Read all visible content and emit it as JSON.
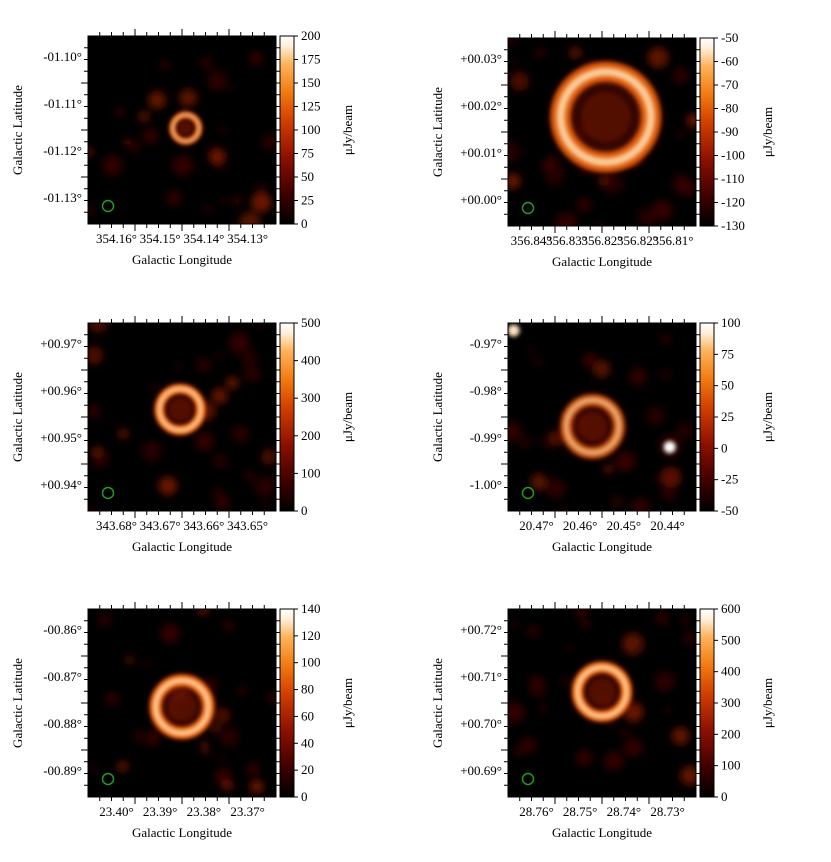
{
  "colorscale": {
    "name": "afmhot",
    "stops": [
      "#000000",
      "#3a0000",
      "#8b0f00",
      "#d23f00",
      "#f27a10",
      "#ffb25a",
      "#fff1dd",
      "#ffffff"
    ]
  },
  "beam_color": "#22a022",
  "panels": [
    {
      "id": "p1",
      "xlabel": "Galactic Longitude",
      "ylabel": "Galactic Latitude",
      "xticks": [
        "354.16°",
        "354.15°",
        "354.14°",
        "354.13°"
      ],
      "yticks": [
        "-01.10°",
        "-01.11°",
        "-01.12°",
        "-01.13°"
      ],
      "cbar_label": "μJy/beam",
      "cbar_ticks": [
        "200",
        "175",
        "150",
        "125",
        "100",
        "75",
        "50",
        "25",
        "0"
      ],
      "cbar_range": [
        0,
        200
      ],
      "source": {
        "shape": "ring",
        "cx": 0.52,
        "cy": 0.49,
        "r": 0.07,
        "intensity": 0.95
      }
    },
    {
      "id": "p2",
      "xlabel": "Galactic Longitude",
      "ylabel": "Galactic Latitude",
      "xticks": [
        "356.84°",
        "356.83°",
        "356.82°",
        "356.82°",
        "356.81°"
      ],
      "yticks": [
        "+00.03°",
        "+00.02°",
        "+00.01°",
        "+00.00°"
      ],
      "cbar_label": "μJy/beam",
      "cbar_ticks": [
        "-50",
        "-60",
        "-70",
        "-80",
        "-90",
        "-100",
        "-110",
        "-120",
        "-130"
      ],
      "cbar_range": [
        -130,
        -50
      ],
      "source": {
        "shape": "ring",
        "cx": 0.52,
        "cy": 0.42,
        "r": 0.24,
        "intensity": 0.9
      }
    },
    {
      "id": "p3",
      "xlabel": "Galactic Longitude",
      "ylabel": "Galactic Latitude",
      "xticks": [
        "343.68°",
        "343.67°",
        "343.66°",
        "343.65°"
      ],
      "yticks": [
        "+00.97°",
        "+00.96°",
        "+00.95°",
        "+00.94°"
      ],
      "cbar_label": "μJy/beam",
      "cbar_ticks": [
        "500",
        "400",
        "300",
        "200",
        "100",
        "0"
      ],
      "cbar_range": [
        0,
        500
      ],
      "source": {
        "shape": "ring",
        "cx": 0.49,
        "cy": 0.46,
        "r": 0.11,
        "intensity": 1.0
      }
    },
    {
      "id": "p4",
      "xlabel": "Galactic Longitude",
      "ylabel": "Galactic Latitude",
      "xticks": [
        "20.47°",
        "20.46°",
        "20.45°",
        "20.44°"
      ],
      "yticks": [
        "-0.97°",
        "-0.98°",
        "-0.99°",
        "-1.00°"
      ],
      "cbar_label": "μJy/beam",
      "cbar_ticks": [
        "100",
        "75",
        "50",
        "25",
        "0",
        "-25",
        "-50"
      ],
      "cbar_range": [
        -70,
        120
      ],
      "source": {
        "shape": "ring",
        "cx": 0.45,
        "cy": 0.55,
        "r": 0.14,
        "intensity": 0.75
      }
    },
    {
      "id": "p5",
      "xlabel": "Galactic Longitude",
      "ylabel": "Galactic Latitude",
      "xticks": [
        "23.40°",
        "23.39°",
        "23.38°",
        "23.37°"
      ],
      "yticks": [
        "-00.86°",
        "-00.87°",
        "-00.88°",
        "-00.89°"
      ],
      "cbar_label": "μJy/beam",
      "cbar_ticks": [
        "140",
        "120",
        "100",
        "80",
        "60",
        "40",
        "20",
        "0"
      ],
      "cbar_range": [
        0,
        150
      ],
      "source": {
        "shape": "ring",
        "cx": 0.5,
        "cy": 0.52,
        "r": 0.14,
        "intensity": 1.0
      }
    },
    {
      "id": "p6",
      "xlabel": "Galactic Longitude",
      "ylabel": "Galactic Latitude",
      "xticks": [
        "28.76°",
        "28.75°",
        "28.74°",
        "28.73°"
      ],
      "yticks": [
        "+00.72°",
        "+00.71°",
        "+00.70°",
        "+00.69°"
      ],
      "cbar_label": "μJy/beam",
      "cbar_ticks": [
        "600",
        "500",
        "400",
        "300",
        "200",
        "100",
        "0"
      ],
      "cbar_range": [
        0,
        600
      ],
      "source": {
        "shape": "ring",
        "cx": 0.5,
        "cy": 0.44,
        "r": 0.13,
        "intensity": 1.0
      }
    }
  ]
}
